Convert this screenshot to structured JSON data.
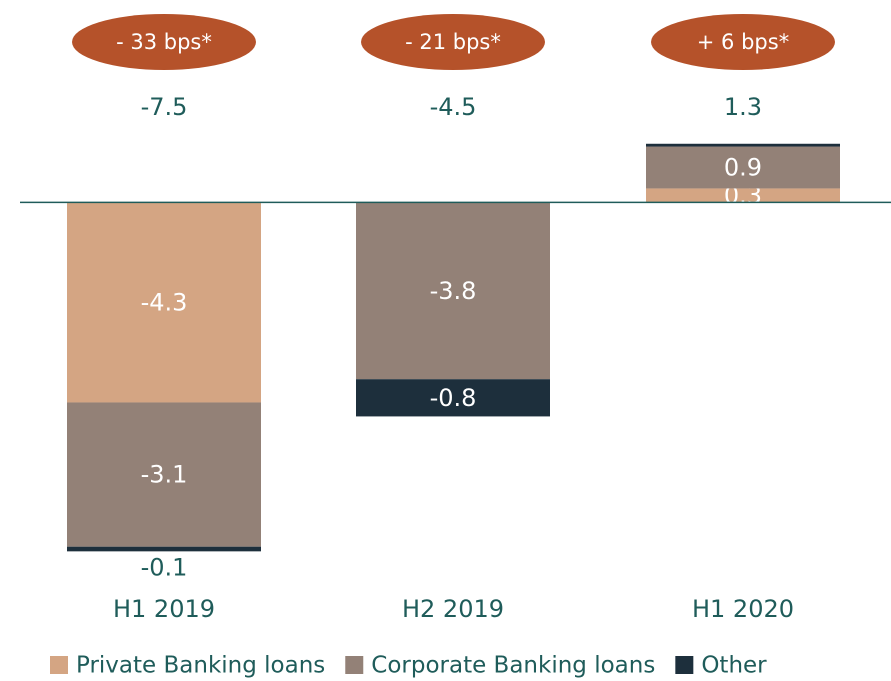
{
  "chart_data": {
    "type": "stacked_bar",
    "categories": [
      "H1 2019",
      "H2 2019",
      "H1 2020"
    ],
    "series": [
      {
        "name": "Private Banking loans",
        "color": "#d4a583",
        "values": [
          -4.3,
          null,
          0.3
        ]
      },
      {
        "name": "Corporate Banking loans",
        "color": "#938177",
        "values": [
          -3.1,
          -3.8,
          0.9
        ]
      },
      {
        "name": "Other",
        "color": "#1d2f3c",
        "values": [
          -0.1,
          -0.8,
          0.06
        ],
        "value_labels": [
          "-0.1",
          "-0.8",
          null
        ]
      }
    ],
    "totals": [
      -7.5,
      -4.5,
      1.3
    ],
    "annotations": [
      "- 33 bps*",
      "- 21 bps*",
      "+ 6 bps*"
    ],
    "ylim": [
      -7.6,
      4.35
    ],
    "legend": "bottom"
  }
}
